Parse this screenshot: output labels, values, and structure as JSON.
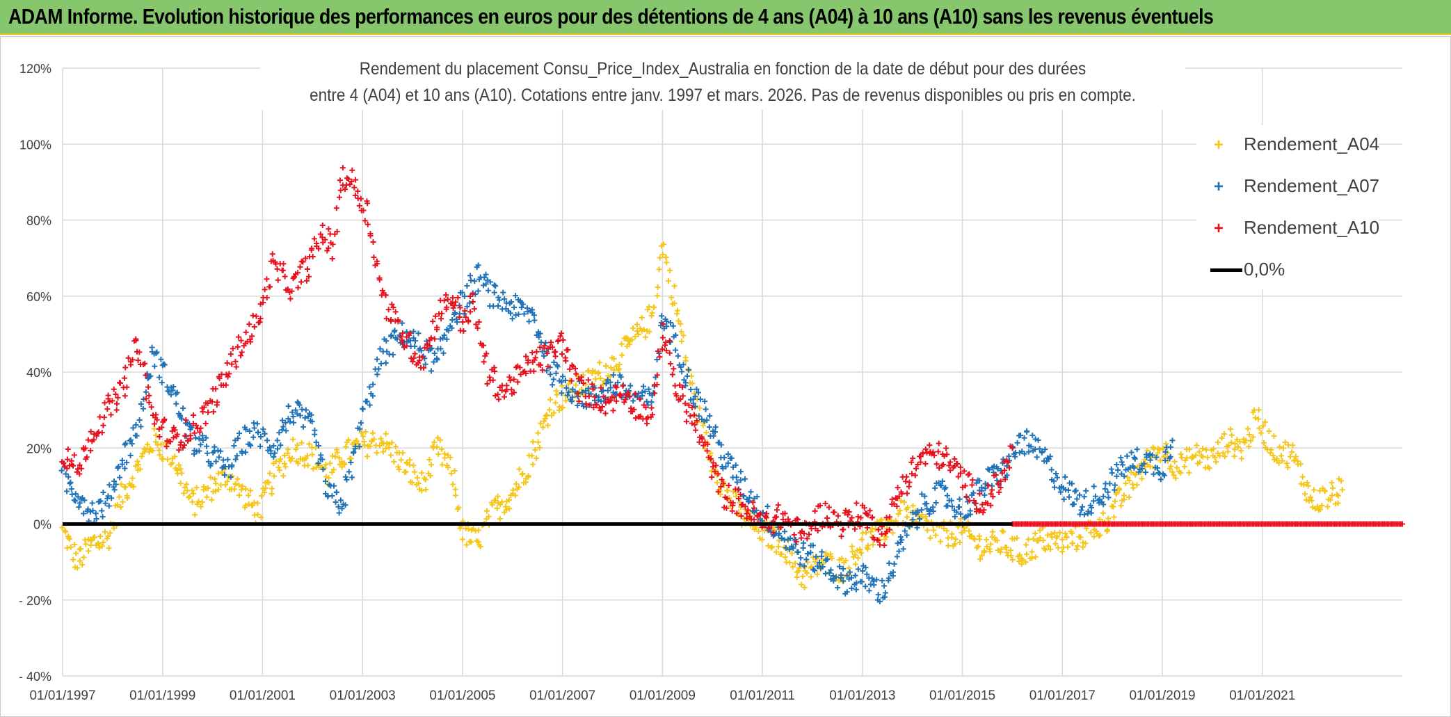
{
  "banner": {
    "title": "ADAM Informe. Evolution historique des performances en euros pour des détentions de 4 ans (A04) à 10 ans (A10) sans les revenus éventuels"
  },
  "chart_data": {
    "type": "scatter",
    "title_line1": "Rendement du placement Consu_Price_Index_Australia en fonction de la date de début pour des durées",
    "title_line2": "entre 4 (A04) et 10 ans (A10). Cotations entre janv. 1997 et mars. 2026. Pas de revenus disponibles ou pris en compte.",
    "xlabel": "",
    "ylabel": "",
    "x_range_years": [
      1997.0,
      2023.8
    ],
    "ylim": [
      -40,
      120
    ],
    "y_ticks": [
      -40,
      -20,
      0,
      20,
      40,
      60,
      80,
      100,
      120
    ],
    "y_tick_labels": [
      "- 40%",
      "- 20%",
      "0%",
      "20%",
      "40%",
      "60%",
      "80%",
      "100%",
      "120%"
    ],
    "x_tick_years": [
      1997,
      1999,
      2001,
      2003,
      2005,
      2007,
      2009,
      2011,
      2013,
      2015,
      2017,
      2019,
      2021
    ],
    "x_tick_labels": [
      "01/01/1997",
      "01/01/1999",
      "01/01/2001",
      "01/01/2003",
      "01/01/2005",
      "01/01/2007",
      "01/01/2009",
      "01/01/2011",
      "01/01/2013",
      "01/01/2015",
      "01/01/2017",
      "01/01/2019",
      "01/01/2021"
    ],
    "grid": true,
    "legend_position": "top-right",
    "series": [
      {
        "name": "Rendement_A04",
        "color": "#f5c518",
        "marker": "+",
        "x": [
          1997.0,
          1997.3,
          1997.6,
          1997.9,
          1998.2,
          1998.5,
          1998.8,
          1999.2,
          1999.6,
          2000.0,
          2000.3,
          2000.6,
          2000.9,
          2001.2,
          2001.6,
          2002.0,
          2002.3,
          2002.6,
          2003.0,
          2003.4,
          2003.8,
          2004.2,
          2004.5,
          2004.8,
          2005.0,
          2005.3,
          2005.6,
          2006.0,
          2006.4,
          2006.8,
          2007.2,
          2007.6,
          2008.0,
          2008.4,
          2008.8,
          2009.0,
          2009.3,
          2009.6,
          2009.9,
          2010.2,
          2010.6,
          2011.0,
          2011.4,
          2011.8,
          2012.2,
          2012.6,
          2013.0,
          2013.4,
          2013.8,
          2014.2,
          2014.6,
          2015.0,
          2015.4,
          2015.8,
          2016.2,
          2016.6,
          2017.0,
          2017.4,
          2017.8,
          2018.2,
          2018.6,
          2019.0,
          2019.3,
          2019.7,
          2020.0,
          2020.3,
          2020.6,
          2020.9,
          2021.2,
          2021.6,
          2022.0,
          2022.3,
          2022.6
        ],
        "y": [
          -2,
          -10,
          -5,
          -4,
          8,
          15,
          22,
          18,
          5,
          10,
          13,
          8,
          3,
          12,
          20,
          18,
          13,
          18,
          21,
          22,
          16,
          10,
          20,
          13,
          -2,
          -5,
          3,
          8,
          18,
          32,
          35,
          38,
          42,
          48,
          55,
          74,
          55,
          35,
          20,
          10,
          2,
          -2,
          -5,
          -14,
          -10,
          -12,
          -5,
          -2,
          3,
          0,
          -3,
          -2,
          -6,
          -5,
          -8,
          -4,
          -5,
          -3,
          0,
          7,
          15,
          20,
          15,
          18,
          17,
          22,
          20,
          28,
          20,
          18,
          6,
          7,
          9
        ]
      },
      {
        "name": "Rendement_A07",
        "color": "#1f72b8",
        "marker": "+",
        "x": [
          1997.0,
          1997.3,
          1997.6,
          1997.9,
          1998.2,
          1998.5,
          1998.8,
          1999.2,
          1999.6,
          2000.0,
          2000.3,
          2000.6,
          2000.9,
          2001.2,
          2001.6,
          2002.0,
          2002.3,
          2002.6,
          2003.0,
          2003.4,
          2003.8,
          2004.2,
          2004.5,
          2004.8,
          2005.0,
          2005.3,
          2005.6,
          2006.0,
          2006.4,
          2006.8,
          2007.2,
          2007.6,
          2008.0,
          2008.4,
          2008.8,
          2009.0,
          2009.3,
          2009.6,
          2009.9,
          2010.2,
          2010.6,
          2011.0,
          2011.4,
          2011.8,
          2012.2,
          2012.6,
          2013.0,
          2013.4,
          2013.8,
          2014.2,
          2014.6,
          2015.0,
          2015.4,
          2015.8,
          2016.2,
          2016.6,
          2017.0,
          2017.4,
          2017.8,
          2018.2,
          2018.6,
          2019.0,
          2019.2
        ],
        "y": [
          12,
          8,
          3,
          6,
          17,
          25,
          45,
          35,
          22,
          18,
          14,
          22,
          24,
          20,
          30,
          25,
          8,
          5,
          28,
          45,
          50,
          46,
          42,
          55,
          58,
          65,
          60,
          57,
          55,
          40,
          35,
          33,
          37,
          34,
          32,
          55,
          46,
          35,
          28,
          18,
          10,
          3,
          -3,
          -8,
          -10,
          -15,
          -14,
          -18,
          -5,
          5,
          8,
          3,
          10,
          14,
          22,
          18,
          10,
          5,
          8,
          15,
          17,
          15,
          22
        ]
      },
      {
        "name": "Rendement_A10",
        "color": "#e8111d",
        "marker": "+",
        "x": [
          1997.0,
          1997.3,
          1997.6,
          1997.9,
          1998.2,
          1998.5,
          1998.8,
          1999.2,
          1999.6,
          2000.0,
          2000.3,
          2000.6,
          2000.9,
          2001.2,
          2001.6,
          2002.0,
          2002.2,
          2002.4,
          2002.6,
          2002.8,
          2003.1,
          2003.4,
          2003.7,
          2004.0,
          2004.2,
          2004.5,
          2004.8,
          2005.0,
          2005.2,
          2005.5,
          2005.8,
          2006.1,
          2006.4,
          2006.7,
          2007.0,
          2007.3,
          2007.6,
          2007.9,
          2008.2,
          2008.5,
          2008.8,
          2009.0,
          2009.3,
          2009.6,
          2009.9,
          2010.2,
          2010.6,
          2011.0,
          2011.4,
          2011.8,
          2012.2,
          2012.6,
          2013.0,
          2013.4,
          2013.8,
          2014.2,
          2014.6,
          2015.0,
          2015.4,
          2015.8,
          2016.0
        ],
        "y": [
          19,
          14,
          24,
          30,
          35,
          48,
          28,
          22,
          25,
          32,
          40,
          48,
          53,
          68,
          62,
          70,
          77,
          72,
          92,
          90,
          82,
          60,
          52,
          46,
          43,
          55,
          60,
          53,
          58,
          40,
          35,
          38,
          43,
          44,
          48,
          36,
          34,
          32,
          35,
          31,
          28,
          52,
          35,
          28,
          18,
          8,
          5,
          0,
          2,
          -3,
          3,
          0,
          3,
          -3,
          10,
          18,
          18,
          12,
          5,
          12,
          20
        ]
      },
      {
        "name": "Rendement_A10 (0%)",
        "color": "#e8111d",
        "marker": "+",
        "x_range_years": [
          2016.0,
          2023.8
        ],
        "y_constant": 0
      }
    ],
    "reference_line": {
      "name": "0,0%",
      "value": 0,
      "color": "#000000"
    }
  },
  "legend": {
    "items": [
      {
        "label": "Rendement_A04",
        "color": "#f5c518",
        "marker": "+"
      },
      {
        "label": "Rendement_A07",
        "color": "#1f72b8",
        "marker": "+"
      },
      {
        "label": "Rendement_A10",
        "color": "#e8111d",
        "marker": "+"
      },
      {
        "label": "0,0%",
        "color": "#000000",
        "marker": "line"
      }
    ]
  }
}
